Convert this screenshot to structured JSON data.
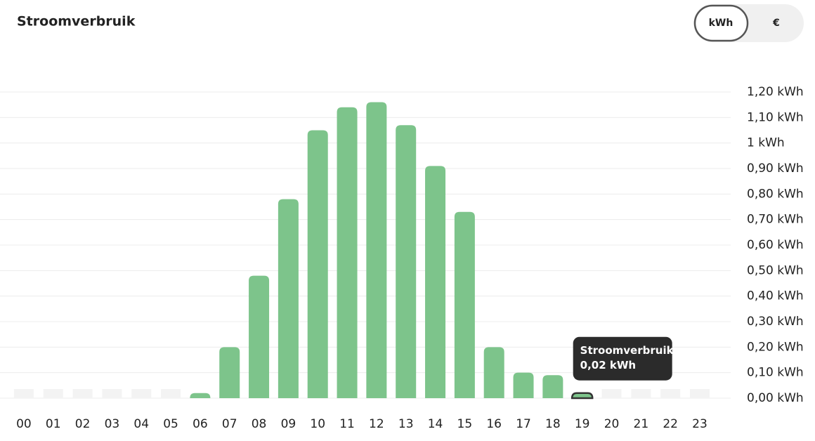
{
  "toggle": [
    "kWh",
    "€"
  ],
  "chart_data": {
    "type": "bar",
    "title": "Stroomverbruik",
    "categories": [
      "00",
      "01",
      "02",
      "03",
      "04",
      "05",
      "06",
      "07",
      "08",
      "09",
      "10",
      "11",
      "12",
      "13",
      "14",
      "15",
      "16",
      "17",
      "18",
      "19",
      "20",
      "21",
      "22",
      "23"
    ],
    "values": [
      null,
      null,
      null,
      null,
      null,
      null,
      0.02,
      0.2,
      0.48,
      0.78,
      1.05,
      1.14,
      1.16,
      1.07,
      0.91,
      0.73,
      0.2,
      0.1,
      0.09,
      0.02,
      null,
      null,
      null,
      null
    ],
    "value_labels": [
      null,
      null,
      null,
      null,
      null,
      null,
      null,
      null,
      null,
      null,
      null,
      null,
      null,
      null,
      null,
      null,
      null,
      null,
      null,
      "0,02 kWh",
      null,
      null,
      null,
      null
    ],
    "color": "#7dc48b",
    "ylim": [
      0,
      1.2
    ],
    "yticks": [
      {
        "value": 0,
        "label": "0,00 kWh"
      },
      {
        "value": 0.1,
        "label": "0,10 kWh"
      },
      {
        "value": 0.2,
        "label": "0,20 kWh"
      },
      {
        "value": 0.3,
        "label": "0,30 kWh"
      },
      {
        "value": 0.4,
        "label": "0,40 kWh"
      },
      {
        "value": 0.5,
        "label": "0,50 kWh"
      },
      {
        "value": 0.6,
        "label": "0,60 kWh"
      },
      {
        "value": 0.7,
        "label": "0,70 kWh"
      },
      {
        "value": 0.8,
        "label": "0,80 kWh"
      },
      {
        "value": 0.9,
        "label": "0,90 kWh"
      },
      {
        "value": 1,
        "label": "1 kWh"
      },
      {
        "value": 1.1,
        "label": "1,10 kWh"
      },
      {
        "value": 1.2,
        "label": "1,20 kWh"
      }
    ],
    "grid": true
  }
}
